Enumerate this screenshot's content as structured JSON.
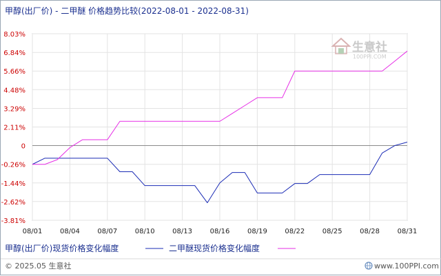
{
  "chart_data": {
    "type": "line",
    "title": "甲醇(出厂价) - 二甲醚 价格趋势比较(2022-08-01 - 2022-08-31)",
    "x": [
      1,
      2,
      3,
      4,
      5,
      6,
      7,
      8,
      9,
      10,
      11,
      12,
      13,
      14,
      15,
      16,
      17,
      18,
      19,
      20,
      21,
      22,
      23,
      24,
      25,
      26,
      27,
      28,
      29,
      30,
      31
    ],
    "x_tick_labels": [
      "08/01",
      "08/04",
      "08/07",
      "08/10",
      "08/13",
      "08/16",
      "08/19",
      "08/22",
      "08/25",
      "08/28",
      "08/31"
    ],
    "x_tick_values": [
      1,
      4,
      7,
      10,
      13,
      16,
      19,
      22,
      25,
      28,
      31
    ],
    "y_tick_labels": [
      "8.03%",
      "6.84%",
      "5.66%",
      "4.48%",
      "3.29%",
      "2.11%",
      "0",
      "-0.26%",
      "-1.44%",
      "-2.62%",
      "-3.81%"
    ],
    "y_tick_values": [
      8.03,
      6.84,
      5.66,
      4.48,
      3.29,
      2.11,
      0.93,
      -0.26,
      -1.44,
      -2.62,
      -3.81
    ],
    "ylim": [
      -3.81,
      8.03
    ],
    "zero_line": 0.93,
    "grid": true,
    "legend_position": "bottom",
    "series": [
      {
        "name": "甲醇(出厂价)现货价格变化幅度",
        "color": "#1a2bb5",
        "values": [
          -0.26,
          0.13,
          0.13,
          0.13,
          0.13,
          0.13,
          0.13,
          -0.73,
          -0.73,
          -1.61,
          -1.61,
          -1.61,
          -1.61,
          -1.61,
          -2.7,
          -1.44,
          -0.78,
          -0.78,
          -2.08,
          -2.08,
          -2.08,
          -1.48,
          -1.48,
          -0.91,
          -0.91,
          -0.91,
          -0.91,
          -0.91,
          0.46,
          0.93,
          1.15
        ]
      },
      {
        "name": "二甲醚现货价格变化幅度",
        "color": "#e62ee6",
        "values": [
          -0.26,
          -0.26,
          0.04,
          0.8,
          1.3,
          1.3,
          1.3,
          2.47,
          2.47,
          2.47,
          2.47,
          2.47,
          2.47,
          2.47,
          2.47,
          2.47,
          2.97,
          3.47,
          3.97,
          3.97,
          3.97,
          5.66,
          5.66,
          5.66,
          5.66,
          5.66,
          5.66,
          5.66,
          5.66,
          6.29,
          6.93
        ]
      }
    ]
  },
  "watermark": {
    "name": "生意社",
    "url": "100PPI.COM"
  },
  "footer": {
    "copyright": "© 2025.05 生意社",
    "url": "www.100PPI.com"
  }
}
